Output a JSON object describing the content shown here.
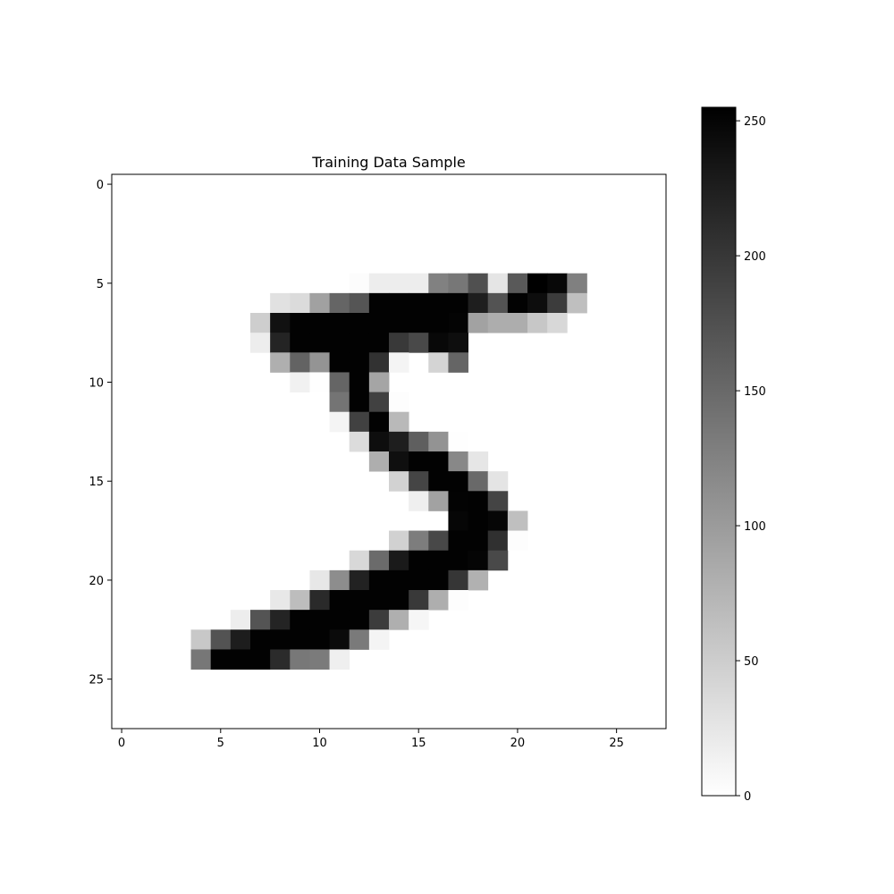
{
  "chart_data": {
    "type": "heatmap",
    "title": "Training Data Sample",
    "xlabel": "",
    "ylabel": "",
    "xlim": [
      -0.5,
      27.5
    ],
    "ylim": [
      27.5,
      -0.5
    ],
    "grid": false,
    "colormap": "gray_r",
    "x_ticks": [
      0,
      5,
      10,
      15,
      20,
      25
    ],
    "y_ticks": [
      0,
      5,
      10,
      15,
      20,
      25
    ],
    "colorbar": {
      "range": [
        0,
        255
      ],
      "ticks": [
        0,
        50,
        100,
        150,
        200,
        250
      ]
    },
    "rows": 28,
    "cols": 28,
    "cells": [
      {
        "r": 5,
        "c": 12,
        "v": 3
      },
      {
        "r": 5,
        "c": 13,
        "v": 18
      },
      {
        "r": 5,
        "c": 14,
        "v": 18
      },
      {
        "r": 5,
        "c": 15,
        "v": 18
      },
      {
        "r": 5,
        "c": 16,
        "v": 126
      },
      {
        "r": 5,
        "c": 17,
        "v": 136
      },
      {
        "r": 5,
        "c": 18,
        "v": 175
      },
      {
        "r": 5,
        "c": 19,
        "v": 26
      },
      {
        "r": 5,
        "c": 20,
        "v": 166
      },
      {
        "r": 5,
        "c": 21,
        "v": 255
      },
      {
        "r": 5,
        "c": 22,
        "v": 247
      },
      {
        "r": 5,
        "c": 23,
        "v": 127
      },
      {
        "r": 6,
        "c": 8,
        "v": 30
      },
      {
        "r": 6,
        "c": 9,
        "v": 36
      },
      {
        "r": 6,
        "c": 10,
        "v": 94
      },
      {
        "r": 6,
        "c": 11,
        "v": 154
      },
      {
        "r": 6,
        "c": 12,
        "v": 170
      },
      {
        "r": 6,
        "c": 13,
        "v": 253
      },
      {
        "r": 6,
        "c": 14,
        "v": 253
      },
      {
        "r": 6,
        "c": 15,
        "v": 253
      },
      {
        "r": 6,
        "c": 16,
        "v": 253
      },
      {
        "r": 6,
        "c": 17,
        "v": 253
      },
      {
        "r": 6,
        "c": 18,
        "v": 225
      },
      {
        "r": 6,
        "c": 19,
        "v": 172
      },
      {
        "r": 6,
        "c": 20,
        "v": 253
      },
      {
        "r": 6,
        "c": 21,
        "v": 242
      },
      {
        "r": 6,
        "c": 22,
        "v": 195
      },
      {
        "r": 6,
        "c": 23,
        "v": 64
      },
      {
        "r": 7,
        "c": 7,
        "v": 49
      },
      {
        "r": 7,
        "c": 8,
        "v": 238
      },
      {
        "r": 7,
        "c": 9,
        "v": 253
      },
      {
        "r": 7,
        "c": 10,
        "v": 253
      },
      {
        "r": 7,
        "c": 11,
        "v": 253
      },
      {
        "r": 7,
        "c": 12,
        "v": 253
      },
      {
        "r": 7,
        "c": 13,
        "v": 253
      },
      {
        "r": 7,
        "c": 14,
        "v": 253
      },
      {
        "r": 7,
        "c": 15,
        "v": 253
      },
      {
        "r": 7,
        "c": 16,
        "v": 253
      },
      {
        "r": 7,
        "c": 17,
        "v": 251
      },
      {
        "r": 7,
        "c": 18,
        "v": 93
      },
      {
        "r": 7,
        "c": 19,
        "v": 82
      },
      {
        "r": 7,
        "c": 20,
        "v": 82
      },
      {
        "r": 7,
        "c": 21,
        "v": 56
      },
      {
        "r": 7,
        "c": 22,
        "v": 39
      },
      {
        "r": 8,
        "c": 7,
        "v": 18
      },
      {
        "r": 8,
        "c": 8,
        "v": 219
      },
      {
        "r": 8,
        "c": 9,
        "v": 253
      },
      {
        "r": 8,
        "c": 10,
        "v": 253
      },
      {
        "r": 8,
        "c": 11,
        "v": 253
      },
      {
        "r": 8,
        "c": 12,
        "v": 253
      },
      {
        "r": 8,
        "c": 13,
        "v": 253
      },
      {
        "r": 8,
        "c": 14,
        "v": 198
      },
      {
        "r": 8,
        "c": 15,
        "v": 182
      },
      {
        "r": 8,
        "c": 16,
        "v": 247
      },
      {
        "r": 8,
        "c": 17,
        "v": 241
      },
      {
        "r": 9,
        "c": 8,
        "v": 80
      },
      {
        "r": 9,
        "c": 9,
        "v": 156
      },
      {
        "r": 9,
        "c": 10,
        "v": 107
      },
      {
        "r": 9,
        "c": 11,
        "v": 253
      },
      {
        "r": 9,
        "c": 12,
        "v": 253
      },
      {
        "r": 9,
        "c": 13,
        "v": 205
      },
      {
        "r": 9,
        "c": 14,
        "v": 11
      },
      {
        "r": 9,
        "c": 16,
        "v": 43
      },
      {
        "r": 9,
        "c": 17,
        "v": 154
      },
      {
        "r": 10,
        "c": 9,
        "v": 14
      },
      {
        "r": 10,
        "c": 10,
        "v": 1
      },
      {
        "r": 10,
        "c": 11,
        "v": 154
      },
      {
        "r": 10,
        "c": 12,
        "v": 253
      },
      {
        "r": 10,
        "c": 13,
        "v": 90
      },
      {
        "r": 11,
        "c": 11,
        "v": 139
      },
      {
        "r": 11,
        "c": 12,
        "v": 253
      },
      {
        "r": 11,
        "c": 13,
        "v": 190
      },
      {
        "r": 11,
        "c": 14,
        "v": 2
      },
      {
        "r": 12,
        "c": 11,
        "v": 11
      },
      {
        "r": 12,
        "c": 12,
        "v": 190
      },
      {
        "r": 12,
        "c": 13,
        "v": 253
      },
      {
        "r": 12,
        "c": 14,
        "v": 70
      },
      {
        "r": 13,
        "c": 12,
        "v": 35
      },
      {
        "r": 13,
        "c": 13,
        "v": 241
      },
      {
        "r": 13,
        "c": 14,
        "v": 225
      },
      {
        "r": 13,
        "c": 15,
        "v": 160
      },
      {
        "r": 13,
        "c": 16,
        "v": 108
      },
      {
        "r": 13,
        "c": 17,
        "v": 1
      },
      {
        "r": 14,
        "c": 13,
        "v": 81
      },
      {
        "r": 14,
        "c": 14,
        "v": 240
      },
      {
        "r": 14,
        "c": 15,
        "v": 253
      },
      {
        "r": 14,
        "c": 16,
        "v": 253
      },
      {
        "r": 14,
        "c": 17,
        "v": 119
      },
      {
        "r": 14,
        "c": 18,
        "v": 25
      },
      {
        "r": 15,
        "c": 14,
        "v": 45
      },
      {
        "r": 15,
        "c": 15,
        "v": 186
      },
      {
        "r": 15,
        "c": 16,
        "v": 253
      },
      {
        "r": 15,
        "c": 17,
        "v": 253
      },
      {
        "r": 15,
        "c": 18,
        "v": 150
      },
      {
        "r": 15,
        "c": 19,
        "v": 27
      },
      {
        "r": 16,
        "c": 15,
        "v": 16
      },
      {
        "r": 16,
        "c": 16,
        "v": 93
      },
      {
        "r": 16,
        "c": 17,
        "v": 252
      },
      {
        "r": 16,
        "c": 18,
        "v": 253
      },
      {
        "r": 16,
        "c": 19,
        "v": 187
      },
      {
        "r": 17,
        "c": 17,
        "v": 249
      },
      {
        "r": 17,
        "c": 18,
        "v": 253
      },
      {
        "r": 17,
        "c": 19,
        "v": 249
      },
      {
        "r": 17,
        "c": 20,
        "v": 64
      },
      {
        "r": 18,
        "c": 14,
        "v": 46
      },
      {
        "r": 18,
        "c": 15,
        "v": 130
      },
      {
        "r": 18,
        "c": 16,
        "v": 183
      },
      {
        "r": 18,
        "c": 17,
        "v": 253
      },
      {
        "r": 18,
        "c": 18,
        "v": 253
      },
      {
        "r": 18,
        "c": 19,
        "v": 207
      },
      {
        "r": 18,
        "c": 20,
        "v": 2
      },
      {
        "r": 19,
        "c": 12,
        "v": 39
      },
      {
        "r": 19,
        "c": 13,
        "v": 148
      },
      {
        "r": 19,
        "c": 14,
        "v": 229
      },
      {
        "r": 19,
        "c": 15,
        "v": 253
      },
      {
        "r": 19,
        "c": 16,
        "v": 253
      },
      {
        "r": 19,
        "c": 17,
        "v": 253
      },
      {
        "r": 19,
        "c": 18,
        "v": 250
      },
      {
        "r": 19,
        "c": 19,
        "v": 182
      },
      {
        "r": 20,
        "c": 10,
        "v": 24
      },
      {
        "r": 20,
        "c": 11,
        "v": 114
      },
      {
        "r": 20,
        "c": 12,
        "v": 221
      },
      {
        "r": 20,
        "c": 13,
        "v": 253
      },
      {
        "r": 20,
        "c": 14,
        "v": 253
      },
      {
        "r": 20,
        "c": 15,
        "v": 253
      },
      {
        "r": 20,
        "c": 16,
        "v": 253
      },
      {
        "r": 20,
        "c": 17,
        "v": 201
      },
      {
        "r": 20,
        "c": 18,
        "v": 78
      },
      {
        "r": 21,
        "c": 8,
        "v": 23
      },
      {
        "r": 21,
        "c": 9,
        "v": 66
      },
      {
        "r": 21,
        "c": 10,
        "v": 213
      },
      {
        "r": 21,
        "c": 11,
        "v": 253
      },
      {
        "r": 21,
        "c": 12,
        "v": 253
      },
      {
        "r": 21,
        "c": 13,
        "v": 253
      },
      {
        "r": 21,
        "c": 14,
        "v": 253
      },
      {
        "r": 21,
        "c": 15,
        "v": 198
      },
      {
        "r": 21,
        "c": 16,
        "v": 81
      },
      {
        "r": 21,
        "c": 17,
        "v": 2
      },
      {
        "r": 22,
        "c": 6,
        "v": 18
      },
      {
        "r": 22,
        "c": 7,
        "v": 171
      },
      {
        "r": 22,
        "c": 8,
        "v": 219
      },
      {
        "r": 22,
        "c": 9,
        "v": 253
      },
      {
        "r": 22,
        "c": 10,
        "v": 253
      },
      {
        "r": 22,
        "c": 11,
        "v": 253
      },
      {
        "r": 22,
        "c": 12,
        "v": 253
      },
      {
        "r": 22,
        "c": 13,
        "v": 195
      },
      {
        "r": 22,
        "c": 14,
        "v": 80
      },
      {
        "r": 22,
        "c": 15,
        "v": 9
      },
      {
        "r": 23,
        "c": 4,
        "v": 55
      },
      {
        "r": 23,
        "c": 5,
        "v": 172
      },
      {
        "r": 23,
        "c": 6,
        "v": 226
      },
      {
        "r": 23,
        "c": 7,
        "v": 253
      },
      {
        "r": 23,
        "c": 8,
        "v": 253
      },
      {
        "r": 23,
        "c": 9,
        "v": 253
      },
      {
        "r": 23,
        "c": 10,
        "v": 253
      },
      {
        "r": 23,
        "c": 11,
        "v": 244
      },
      {
        "r": 23,
        "c": 12,
        "v": 133
      },
      {
        "r": 23,
        "c": 13,
        "v": 11
      },
      {
        "r": 24,
        "c": 4,
        "v": 136
      },
      {
        "r": 24,
        "c": 5,
        "v": 253
      },
      {
        "r": 24,
        "c": 6,
        "v": 253
      },
      {
        "r": 24,
        "c": 7,
        "v": 253
      },
      {
        "r": 24,
        "c": 8,
        "v": 212
      },
      {
        "r": 24,
        "c": 9,
        "v": 135
      },
      {
        "r": 24,
        "c": 10,
        "v": 132
      },
      {
        "r": 24,
        "c": 11,
        "v": 16
      }
    ]
  }
}
